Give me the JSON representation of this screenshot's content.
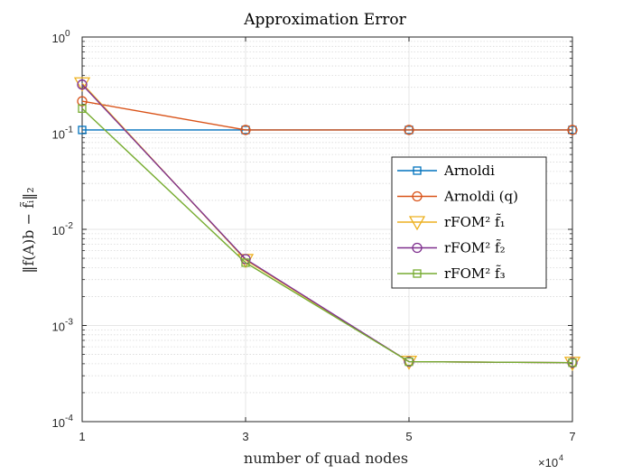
{
  "chart_data": {
    "type": "line",
    "title": "Approximation Error",
    "xlabel": "number of quad nodes",
    "ylabel": "‖f(A)b − f̃ᵢ‖₂",
    "x": [
      1,
      3,
      5,
      7
    ],
    "x_scale_exponent_label": "×10",
    "x_scale_exponent": "4",
    "xlim": [
      1,
      7
    ],
    "ylim": [
      0.0001,
      1
    ],
    "yscale": "log",
    "grid": true,
    "legend_position": "right",
    "x_ticks": [
      "1",
      "3",
      "5",
      "7"
    ],
    "y_ticks": [
      {
        "base": "10",
        "exp": "0",
        "value": 1
      },
      {
        "base": "10",
        "exp": "-1",
        "value": 0.1
      },
      {
        "base": "10",
        "exp": "-2",
        "value": 0.01
      },
      {
        "base": "10",
        "exp": "-3",
        "value": 0.001
      },
      {
        "base": "10",
        "exp": "-4",
        "value": 0.0001
      }
    ],
    "series": [
      {
        "name": "Arnoldi",
        "color": "#0072BD",
        "marker": "square",
        "values": [
          0.108,
          0.108,
          0.108,
          0.108
        ]
      },
      {
        "name": "Arnoldi (q)",
        "color": "#D95319",
        "marker": "circle",
        "values": [
          0.215,
          0.108,
          0.108,
          0.108
        ]
      },
      {
        "name": "rFOM² f̃₁",
        "color": "#EDB120",
        "marker": "triangle-down",
        "values": [
          0.33,
          0.0048,
          0.00042,
          0.00041
        ]
      },
      {
        "name": "rFOM² f̃₂",
        "color": "#7E2F8E",
        "marker": "circle",
        "values": [
          0.32,
          0.0049,
          0.00042,
          0.00041
        ]
      },
      {
        "name": "rFOM² f̃₃",
        "color": "#77AC30",
        "marker": "square",
        "values": [
          0.18,
          0.0045,
          0.00042,
          0.00041
        ]
      }
    ]
  }
}
